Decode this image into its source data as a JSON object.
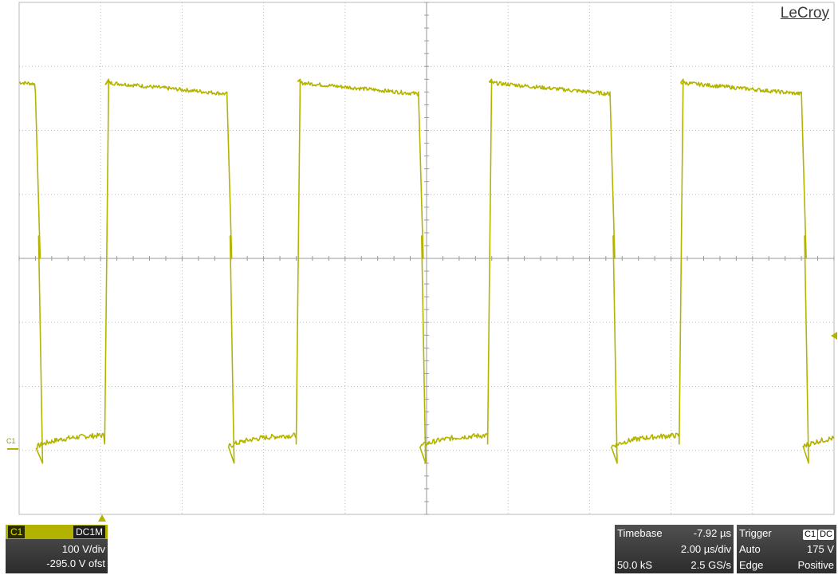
{
  "brand": "LeCroy",
  "channel_marker": "C1",
  "channel": {
    "tag": "C1",
    "coupling": "DC1M",
    "scale": "100 V/div",
    "offset": "-295.0 V ofst"
  },
  "timebase": {
    "label": "Timebase",
    "delay": "-7.92 µs",
    "scale": "2.00 µs/div",
    "samples": "50.0 kS",
    "rate": "2.5 GS/s"
  },
  "trigger": {
    "label": "Trigger",
    "source": "C1",
    "coupling": "DC",
    "mode": "Auto",
    "level": "175 V",
    "type": "Edge",
    "slope": "Positive"
  },
  "colors": {
    "trace": "#b4b400",
    "grid": "#b8b8b8",
    "panel": "#3c3c3c",
    "channel_header": "#b2b200"
  },
  "waveform": {
    "type": "square-wave",
    "high_level_div": 2.75,
    "low_level_div": -3.0,
    "divisions_x": 10,
    "divisions_y": 8,
    "transitions_div": [
      {
        "t": 0.2,
        "edge": "falling"
      },
      {
        "t": 1.05,
        "edge": "rising"
      },
      {
        "t": 2.55,
        "edge": "falling"
      },
      {
        "t": 3.4,
        "edge": "rising"
      },
      {
        "t": 4.9,
        "edge": "falling"
      },
      {
        "t": 5.75,
        "edge": "rising"
      },
      {
        "t": 7.25,
        "edge": "falling"
      },
      {
        "t": 8.1,
        "edge": "rising"
      },
      {
        "t": 9.6,
        "edge": "falling"
      }
    ]
  }
}
